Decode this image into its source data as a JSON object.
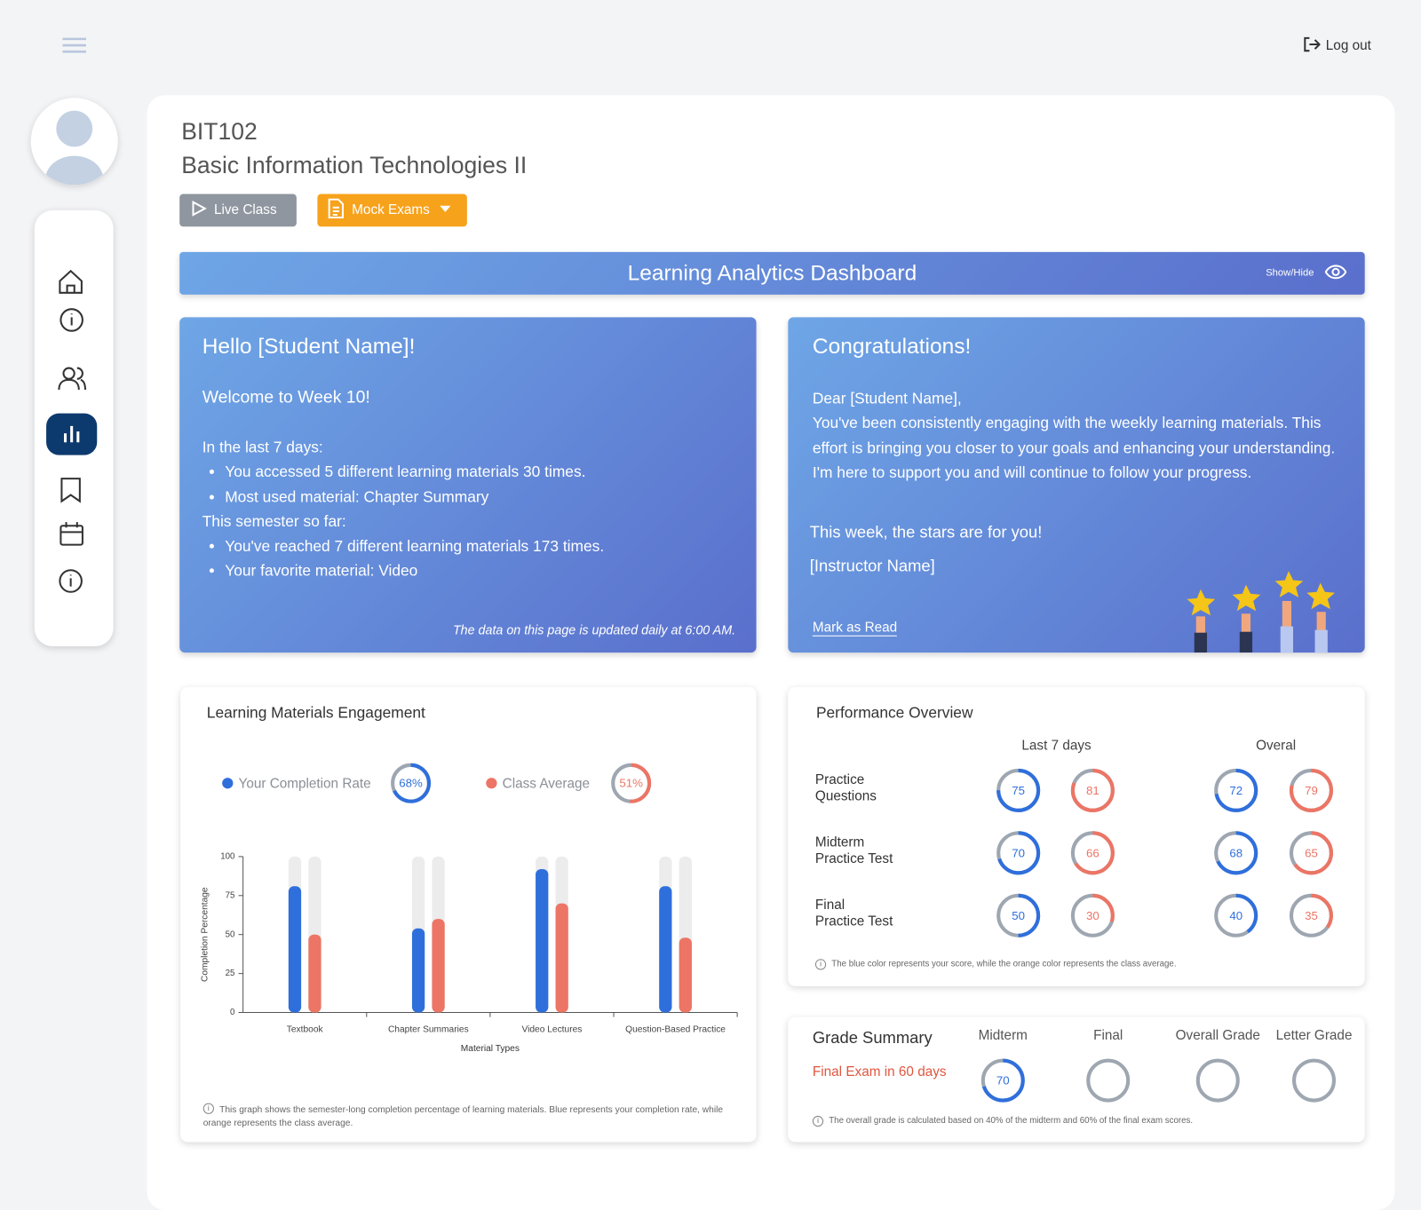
{
  "header": {
    "logout": "Log out"
  },
  "course": {
    "code": "BIT102",
    "title": "Basic Information Technologies II"
  },
  "actions": {
    "live_class": "Live Class",
    "mock_exams": "Mock Exams"
  },
  "dashboard": {
    "title": "Learning Analytics Dashboard",
    "toggle": "Show/Hide"
  },
  "welcome": {
    "greeting": "Hello [Student Name]!",
    "week": "Welcome to Week 10!",
    "recent_heading": "In the last 7 days:",
    "recent_items": [
      "You accessed 5 different learning materials 30 times.",
      "Most used material: Chapter Summary"
    ],
    "semester_heading": "This semester so far:",
    "semester_items": [
      "You've reached 7 different learning materials 173 times.",
      "Your favorite material: Video"
    ],
    "note": "The data on this page is updated daily at 6:00 AM."
  },
  "congrats": {
    "title": "Congratulations!",
    "salutation": "Dear [Student Name],",
    "body": "You've been consistently engaging with the weekly learning materials. This effort is bringing you closer to your goals and enhancing your understanding. I'm here to support you and will continue to follow your progress.",
    "stars": "This week, the stars are for you!",
    "signature": "[Instructor Name]",
    "action": "Mark as Read"
  },
  "chart_data": {
    "type": "bar",
    "title": "Learning Materials Engagement",
    "categories": [
      "Textbook",
      "Chapter Summaries",
      "Video Lectures",
      "Question-Based Practice"
    ],
    "series": [
      {
        "name": "Your Completion Rate",
        "color": "#2f6fdc",
        "values": [
          81,
          54,
          92,
          81
        ],
        "overall": 68,
        "overall_label": "68%"
      },
      {
        "name": "Class Average",
        "color": "#ec7565",
        "values": [
          50,
          60,
          70,
          48
        ],
        "overall": 51,
        "overall_label": "51%"
      }
    ],
    "xlabel": "Material Types",
    "ylabel": "Completion Percentage",
    "ylim": [
      0,
      100
    ],
    "yticks": [
      0,
      25,
      50,
      75,
      100
    ],
    "note": "This graph shows the semester-long completion percentage of learning materials. Blue represents your completion rate, while orange represents the class average."
  },
  "performance": {
    "title": "Performance Overview",
    "columns": [
      "Last 7 days",
      "Overal"
    ],
    "rows": [
      {
        "label": "Practice\nQuestions",
        "last_7_days": [
          75,
          81
        ],
        "overall": [
          72,
          79
        ]
      },
      {
        "label": "Midterm\nPractice Test",
        "last_7_days": [
          70,
          66
        ],
        "overall": [
          68,
          65
        ]
      },
      {
        "label": "Final\nPractice Test",
        "last_7_days": [
          50,
          30
        ],
        "overall": [
          40,
          35
        ]
      }
    ],
    "colors": [
      "#2f6fdc",
      "#ec7565"
    ],
    "note": "The blue color represents your score, while the orange color represents the class average."
  },
  "grades": {
    "title": "Grade Summary",
    "countdown": "Final Exam in 60 days",
    "columns": [
      "Midterm",
      "Final",
      "Overall Grade",
      "Letter Grade"
    ],
    "scores": [
      70,
      null,
      null,
      null
    ],
    "color": "#2f6fdc",
    "note": "The overall grade is calculated based on 40% of the midterm and 60% of the final exam scores."
  }
}
